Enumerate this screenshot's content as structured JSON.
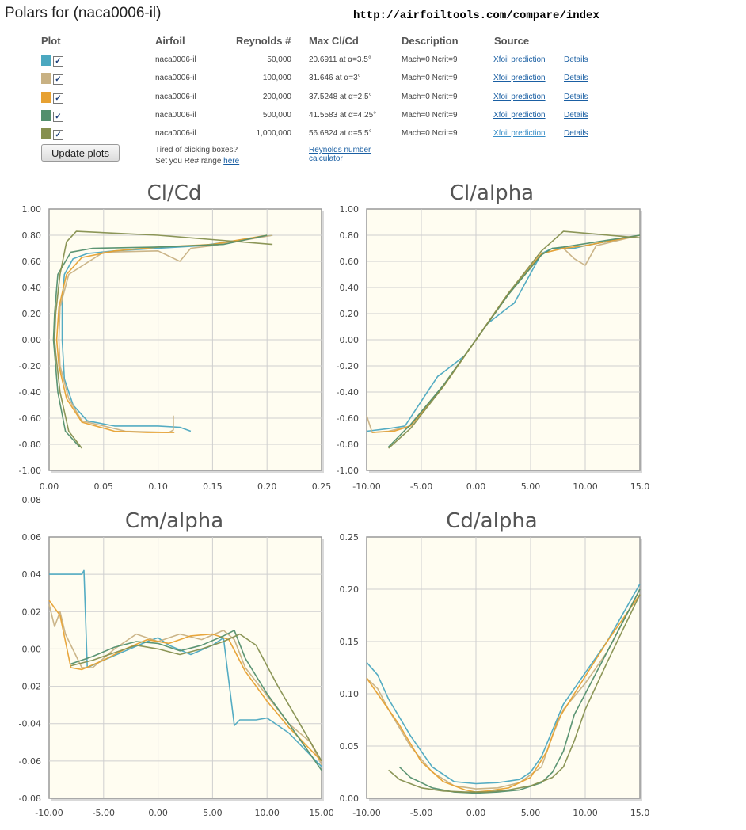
{
  "header": {
    "title": "Polars for (naca0006-il)",
    "url_text": "http://airfoiltools.com/compare/index"
  },
  "table": {
    "columns": {
      "plot": "Plot",
      "airfoil": "Airfoil",
      "reynolds": "Reynolds #",
      "maxclcd": "Max Cl/Cd",
      "description": "Description",
      "source": "Source"
    },
    "rows": [
      {
        "color": "#4ba8c0",
        "checked": true,
        "airfoil": "naca0006-il",
        "reynolds": "50,000",
        "maxclcd": "20.6911 at α=3.5°",
        "description": "Mach=0 Ncrit=9",
        "source": "Xfoil prediction",
        "details": "Details"
      },
      {
        "color": "#c8b183",
        "checked": true,
        "airfoil": "naca0006-il",
        "reynolds": "100,000",
        "maxclcd": "31.646 at α=3°",
        "description": "Mach=0 Ncrit=9",
        "source": "Xfoil prediction",
        "details": "Details"
      },
      {
        "color": "#e7a132",
        "checked": true,
        "airfoil": "naca0006-il",
        "reynolds": "200,000",
        "maxclcd": "37.5248 at α=2.5°",
        "description": "Mach=0 Ncrit=9",
        "source": "Xfoil prediction",
        "details": "Details"
      },
      {
        "color": "#538f6d",
        "checked": true,
        "airfoil": "naca0006-il",
        "reynolds": "500,000",
        "maxclcd": "41.5583 at α=4.25°",
        "description": "Mach=0 Ncrit=9",
        "source": "Xfoil prediction",
        "details": "Details"
      },
      {
        "color": "#86904f",
        "checked": true,
        "airfoil": "naca0006-il",
        "reynolds": "1,000,000",
        "maxclcd": "56.6824 at α=5.5°",
        "description": "Mach=0 Ncrit=9",
        "source": "Xfoil prediction",
        "details": "Details"
      }
    ],
    "update_label": "Update plots",
    "tired_line1": "Tired of clicking boxes?",
    "tired_line2": "Set you Re# range ",
    "here_link": "here",
    "calc_line1": "Reynolds number",
    "calc_line2": "calculator"
  },
  "chart_data": [
    {
      "type": "line",
      "title": "Cl/Cd",
      "xlim": [
        0,
        0.25
      ],
      "ylim": [
        -1,
        1
      ],
      "xticks": [
        "0.00",
        "0.05",
        "0.10",
        "0.15",
        "0.20",
        "0.25"
      ],
      "yticks": [
        "1.00",
        "0.80",
        "0.60",
        "0.40",
        "0.20",
        "0.00",
        "-0.20",
        "-0.40",
        "-0.60",
        "-0.80",
        "-1.00"
      ],
      "series": [
        {
          "color": "#4ba8c0",
          "x": [
            0.13,
            0.12,
            0.1,
            0.06,
            0.035,
            0.022,
            0.014,
            0.012,
            0.012,
            0.014,
            0.022,
            0.035,
            0.06,
            0.1,
            0.14,
            0.205
          ],
          "y": [
            -0.7,
            -0.67,
            -0.66,
            -0.66,
            -0.62,
            -0.5,
            -0.3,
            0.0,
            0.3,
            0.5,
            0.62,
            0.66,
            0.68,
            0.7,
            0.72,
            0.8
          ]
        },
        {
          "color": "#c8b183",
          "x": [
            0.114,
            0.114,
            0.11,
            0.07,
            0.03,
            0.018,
            0.01,
            0.009,
            0.01,
            0.018,
            0.05,
            0.1,
            0.12,
            0.13,
            0.15,
            0.205
          ],
          "y": [
            -0.58,
            -0.69,
            -0.71,
            -0.7,
            -0.62,
            -0.45,
            -0.2,
            0.0,
            0.25,
            0.5,
            0.67,
            0.68,
            0.6,
            0.7,
            0.72,
            0.8
          ]
        },
        {
          "color": "#e7a132",
          "x": [
            0.115,
            0.09,
            0.06,
            0.03,
            0.016,
            0.009,
            0.007,
            0.009,
            0.016,
            0.03,
            0.06,
            0.1,
            0.15,
            0.2
          ],
          "y": [
            -0.71,
            -0.71,
            -0.7,
            -0.63,
            -0.45,
            -0.2,
            0.0,
            0.25,
            0.5,
            0.63,
            0.68,
            0.71,
            0.73,
            0.8
          ]
        },
        {
          "color": "#538f6d",
          "x": [
            0.028,
            0.015,
            0.008,
            0.005,
            0.004,
            0.005,
            0.008,
            0.02,
            0.04,
            0.1,
            0.16,
            0.2
          ],
          "y": [
            -0.82,
            -0.7,
            -0.4,
            -0.1,
            0.0,
            0.2,
            0.5,
            0.67,
            0.7,
            0.71,
            0.73,
            0.8
          ]
        },
        {
          "color": "#86904f",
          "x": [
            0.03,
            0.018,
            0.01,
            0.006,
            0.005,
            0.006,
            0.01,
            0.016,
            0.025,
            0.1,
            0.205
          ],
          "y": [
            -0.83,
            -0.7,
            -0.4,
            -0.1,
            0.0,
            0.2,
            0.5,
            0.75,
            0.83,
            0.8,
            0.73
          ]
        }
      ]
    },
    {
      "type": "line",
      "title": "Cl/alpha",
      "xlim": [
        -10,
        15
      ],
      "ylim": [
        -1,
        1
      ],
      "xticks": [
        "-10.00",
        "-5.00",
        "0.00",
        "5.00",
        "10.00",
        "15.0"
      ],
      "yticks": [
        "1.00",
        "0.80",
        "0.60",
        "0.40",
        "0.20",
        "0.00",
        "-0.20",
        "-0.40",
        "-0.60",
        "-0.80",
        "-1.00"
      ],
      "series": [
        {
          "color": "#4ba8c0",
          "x": [
            -10,
            -8,
            -6.5,
            -3.5,
            -3,
            -1,
            0,
            1,
            3,
            3.5,
            6,
            7,
            9,
            10,
            15
          ],
          "y": [
            -0.7,
            -0.68,
            -0.66,
            -0.28,
            -0.25,
            -0.12,
            0.0,
            0.12,
            0.25,
            0.28,
            0.66,
            0.7,
            0.7,
            0.72,
            0.8
          ]
        },
        {
          "color": "#c8b183",
          "x": [
            -10,
            -9.5,
            -8,
            -6,
            -3,
            0,
            3,
            6,
            8,
            9,
            10,
            11,
            15
          ],
          "y": [
            -0.58,
            -0.71,
            -0.7,
            -0.66,
            -0.35,
            0.0,
            0.35,
            0.66,
            0.7,
            0.62,
            0.57,
            0.72,
            0.8
          ]
        },
        {
          "color": "#e7a132",
          "x": [
            -9.5,
            -7.5,
            -6,
            -3,
            0,
            3,
            6,
            8,
            10,
            15
          ],
          "y": [
            -0.71,
            -0.7,
            -0.66,
            -0.36,
            0.0,
            0.36,
            0.66,
            0.7,
            0.72,
            0.8
          ]
        },
        {
          "color": "#538f6d",
          "x": [
            -8,
            -6,
            -3,
            0,
            3,
            6,
            7,
            8,
            15
          ],
          "y": [
            -0.82,
            -0.65,
            -0.35,
            0.0,
            0.35,
            0.65,
            0.7,
            0.71,
            0.8
          ]
        },
        {
          "color": "#86904f",
          "x": [
            -8,
            -6,
            -3,
            0,
            3,
            6,
            8,
            15
          ],
          "y": [
            -0.83,
            -0.68,
            -0.36,
            0.0,
            0.36,
            0.68,
            0.83,
            0.78
          ]
        }
      ]
    },
    {
      "type": "line",
      "title": "Cm/alpha",
      "xlim": [
        -10,
        15
      ],
      "ylim": [
        -0.08,
        0.06
      ],
      "xticks": [
        "-10.00",
        "-5.00",
        "0.00",
        "5.00",
        "10.00",
        "15.00"
      ],
      "yticks": [
        "0.08",
        "0.06",
        "0.04",
        "0.02",
        "0.00",
        "-0.02",
        "-0.04",
        "-0.06",
        "-0.08"
      ],
      "series": [
        {
          "color": "#4ba8c0",
          "x": [
            -10,
            -7,
            -6.8,
            -6.5,
            -5,
            -3,
            -1,
            0,
            1,
            3,
            5,
            6,
            7,
            7.5,
            9,
            10,
            12,
            15
          ],
          "y": [
            0.04,
            0.04,
            0.042,
            -0.01,
            -0.006,
            -0.001,
            0.004,
            0.006,
            0.002,
            -0.003,
            0.002,
            0.006,
            -0.041,
            -0.038,
            -0.038,
            -0.037,
            -0.045,
            -0.063
          ]
        },
        {
          "color": "#c8b183",
          "x": [
            -10,
            -9.5,
            -9,
            -8.5,
            -7,
            -6,
            -4,
            -2,
            0,
            2,
            4,
            6,
            7,
            8,
            10,
            12,
            14,
            15
          ],
          "y": [
            0.024,
            0.012,
            0.02,
            0.008,
            -0.01,
            -0.01,
            0.0,
            0.008,
            0.004,
            0.008,
            0.005,
            0.01,
            0.005,
            -0.01,
            -0.025,
            -0.04,
            -0.05,
            -0.062
          ]
        },
        {
          "color": "#e7a132",
          "x": [
            -10,
            -9,
            -8,
            -7,
            -5,
            -3,
            -1,
            1,
            3,
            5,
            6.5,
            8,
            10,
            12,
            15
          ],
          "y": [
            0.026,
            0.018,
            -0.01,
            -0.011,
            -0.006,
            0.0,
            0.005,
            0.003,
            0.007,
            0.008,
            0.005,
            -0.012,
            -0.028,
            -0.042,
            -0.06
          ]
        },
        {
          "color": "#538f6d",
          "x": [
            -8,
            -6,
            -4,
            -2,
            0,
            2,
            4,
            6,
            7,
            8,
            10,
            12,
            15
          ],
          "y": [
            -0.008,
            -0.004,
            0.001,
            0.004,
            0.003,
            -0.001,
            0.002,
            0.007,
            0.01,
            -0.005,
            -0.024,
            -0.04,
            -0.065
          ]
        },
        {
          "color": "#86904f",
          "x": [
            -8,
            -6,
            -4,
            -2,
            0,
            2,
            4,
            6,
            7.5,
            9,
            11,
            13,
            15
          ],
          "y": [
            -0.009,
            -0.006,
            -0.002,
            0.002,
            0.0,
            -0.003,
            0.0,
            0.004,
            0.008,
            0.002,
            -0.02,
            -0.04,
            -0.06
          ]
        }
      ]
    },
    {
      "type": "line",
      "title": "Cd/alpha",
      "xlim": [
        -10,
        15
      ],
      "ylim": [
        0,
        0.25
      ],
      "xticks": [
        "-10.00",
        "-5.00",
        "0.00",
        "5.00",
        "10.00",
        "15.0"
      ],
      "yticks": [
        "0.25",
        "0.20",
        "0.15",
        "0.10",
        "0.05",
        "0.00"
      ],
      "series": [
        {
          "color": "#4ba8c0",
          "x": [
            -10,
            -9,
            -8,
            -6,
            -4,
            -2,
            0,
            2,
            4,
            5,
            6,
            7,
            8,
            10,
            12,
            15
          ],
          "y": [
            0.13,
            0.118,
            0.095,
            0.06,
            0.03,
            0.016,
            0.014,
            0.015,
            0.018,
            0.025,
            0.04,
            0.065,
            0.09,
            0.12,
            0.15,
            0.205
          ]
        },
        {
          "color": "#c8b183",
          "x": [
            -10,
            -9,
            -8,
            -6,
            -4,
            -2,
            0,
            2,
            4,
            6,
            7,
            8,
            10,
            12,
            15
          ],
          "y": [
            0.115,
            0.105,
            0.085,
            0.05,
            0.025,
            0.012,
            0.009,
            0.01,
            0.015,
            0.03,
            0.06,
            0.085,
            0.11,
            0.14,
            0.2
          ]
        },
        {
          "color": "#e7a132",
          "x": [
            -10,
            -9,
            -7,
            -5,
            -3,
            -1,
            0,
            1,
            3,
            5,
            6.5,
            7.5,
            9,
            12,
            15
          ],
          "y": [
            0.115,
            0.1,
            0.07,
            0.035,
            0.016,
            0.008,
            0.006,
            0.007,
            0.01,
            0.02,
            0.045,
            0.075,
            0.1,
            0.15,
            0.195
          ]
        },
        {
          "color": "#538f6d",
          "x": [
            -7,
            -6,
            -4,
            -2,
            0,
            2,
            4,
            6,
            7,
            8,
            9,
            11,
            13,
            15
          ],
          "y": [
            0.03,
            0.02,
            0.01,
            0.006,
            0.005,
            0.006,
            0.008,
            0.015,
            0.025,
            0.045,
            0.08,
            0.12,
            0.16,
            0.2
          ]
        },
        {
          "color": "#86904f",
          "x": [
            -8,
            -7,
            -5,
            -3,
            -1,
            1,
            3,
            5,
            7,
            8,
            9,
            10,
            12,
            15
          ],
          "y": [
            0.027,
            0.018,
            0.01,
            0.007,
            0.006,
            0.006,
            0.008,
            0.012,
            0.02,
            0.03,
            0.055,
            0.085,
            0.13,
            0.195
          ]
        }
      ]
    }
  ]
}
